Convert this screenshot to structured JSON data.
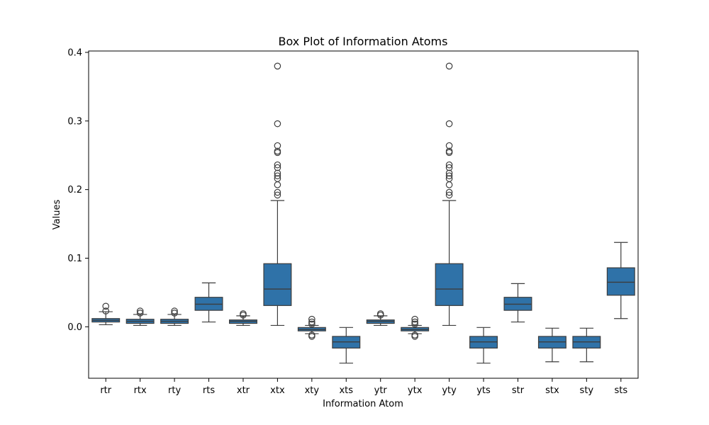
{
  "chart_data": {
    "type": "box",
    "title": "Box Plot of Information Atoms",
    "xlabel": "Information Atom",
    "ylabel": "Values",
    "ylim": [
      -0.075,
      0.402
    ],
    "yticks": [
      {
        "value": 0.0,
        "label": "0.0"
      },
      {
        "value": 0.1,
        "label": "0.1"
      },
      {
        "value": 0.2,
        "label": "0.2"
      },
      {
        "value": 0.3,
        "label": "0.3"
      },
      {
        "value": 0.4,
        "label": "0.4"
      }
    ],
    "grid": false,
    "colors": {
      "box_fill": "#2f72a8",
      "line": "#3d3d3d",
      "background": "#ffffff"
    },
    "series": [
      {
        "category": "rtr",
        "whisker_low": 0.003,
        "q1": 0.007,
        "median": 0.0095,
        "q3": 0.012,
        "whisker_high": 0.022,
        "outliers": [
          0.023,
          0.03
        ]
      },
      {
        "category": "rtx",
        "whisker_low": 0.002,
        "q1": 0.005,
        "median": 0.008,
        "q3": 0.011,
        "whisker_high": 0.018,
        "outliers": [
          0.02,
          0.023
        ]
      },
      {
        "category": "rty",
        "whisker_low": 0.002,
        "q1": 0.005,
        "median": 0.008,
        "q3": 0.011,
        "whisker_high": 0.018,
        "outliers": [
          0.02,
          0.023
        ]
      },
      {
        "category": "rts",
        "whisker_low": 0.007,
        "q1": 0.024,
        "median": 0.033,
        "q3": 0.043,
        "whisker_high": 0.064,
        "outliers": []
      },
      {
        "category": "xtr",
        "whisker_low": 0.002,
        "q1": 0.005,
        "median": 0.008,
        "q3": 0.01,
        "whisker_high": 0.016,
        "outliers": [
          0.017,
          0.019
        ]
      },
      {
        "category": "xtx",
        "whisker_low": 0.002,
        "q1": 0.031,
        "median": 0.055,
        "q3": 0.092,
        "whisker_high": 0.184,
        "outliers": [
          0.192,
          0.196,
          0.207,
          0.216,
          0.22,
          0.224,
          0.232,
          0.236,
          0.254,
          0.256,
          0.264,
          0.296,
          0.38
        ]
      },
      {
        "category": "xty",
        "whisker_low": -0.01,
        "q1": -0.006,
        "median": -0.004,
        "q3": -0.001,
        "whisker_high": 0.002,
        "outliers": [
          0.004,
          0.007,
          0.011,
          -0.012,
          -0.014
        ]
      },
      {
        "category": "xts",
        "whisker_low": -0.053,
        "q1": -0.031,
        "median": -0.022,
        "q3": -0.014,
        "whisker_high": -0.001,
        "outliers": []
      },
      {
        "category": "ytr",
        "whisker_low": 0.002,
        "q1": 0.005,
        "median": 0.008,
        "q3": 0.01,
        "whisker_high": 0.016,
        "outliers": [
          0.017,
          0.019
        ]
      },
      {
        "category": "ytx",
        "whisker_low": -0.01,
        "q1": -0.006,
        "median": -0.004,
        "q3": -0.001,
        "whisker_high": 0.002,
        "outliers": [
          0.004,
          0.007,
          0.011,
          -0.012,
          -0.014
        ]
      },
      {
        "category": "yty",
        "whisker_low": 0.002,
        "q1": 0.031,
        "median": 0.055,
        "q3": 0.092,
        "whisker_high": 0.184,
        "outliers": [
          0.192,
          0.196,
          0.207,
          0.216,
          0.22,
          0.224,
          0.232,
          0.236,
          0.254,
          0.256,
          0.264,
          0.296,
          0.38
        ]
      },
      {
        "category": "yts",
        "whisker_low": -0.053,
        "q1": -0.031,
        "median": -0.022,
        "q3": -0.014,
        "whisker_high": -0.001,
        "outliers": []
      },
      {
        "category": "str",
        "whisker_low": 0.007,
        "q1": 0.024,
        "median": 0.033,
        "q3": 0.043,
        "whisker_high": 0.063,
        "outliers": []
      },
      {
        "category": "stx",
        "whisker_low": -0.051,
        "q1": -0.031,
        "median": -0.022,
        "q3": -0.014,
        "whisker_high": -0.002,
        "outliers": []
      },
      {
        "category": "sty",
        "whisker_low": -0.051,
        "q1": -0.031,
        "median": -0.022,
        "q3": -0.014,
        "whisker_high": -0.002,
        "outliers": []
      },
      {
        "category": "sts",
        "whisker_low": 0.012,
        "q1": 0.046,
        "median": 0.065,
        "q3": 0.086,
        "whisker_high": 0.123,
        "outliers": []
      }
    ]
  }
}
